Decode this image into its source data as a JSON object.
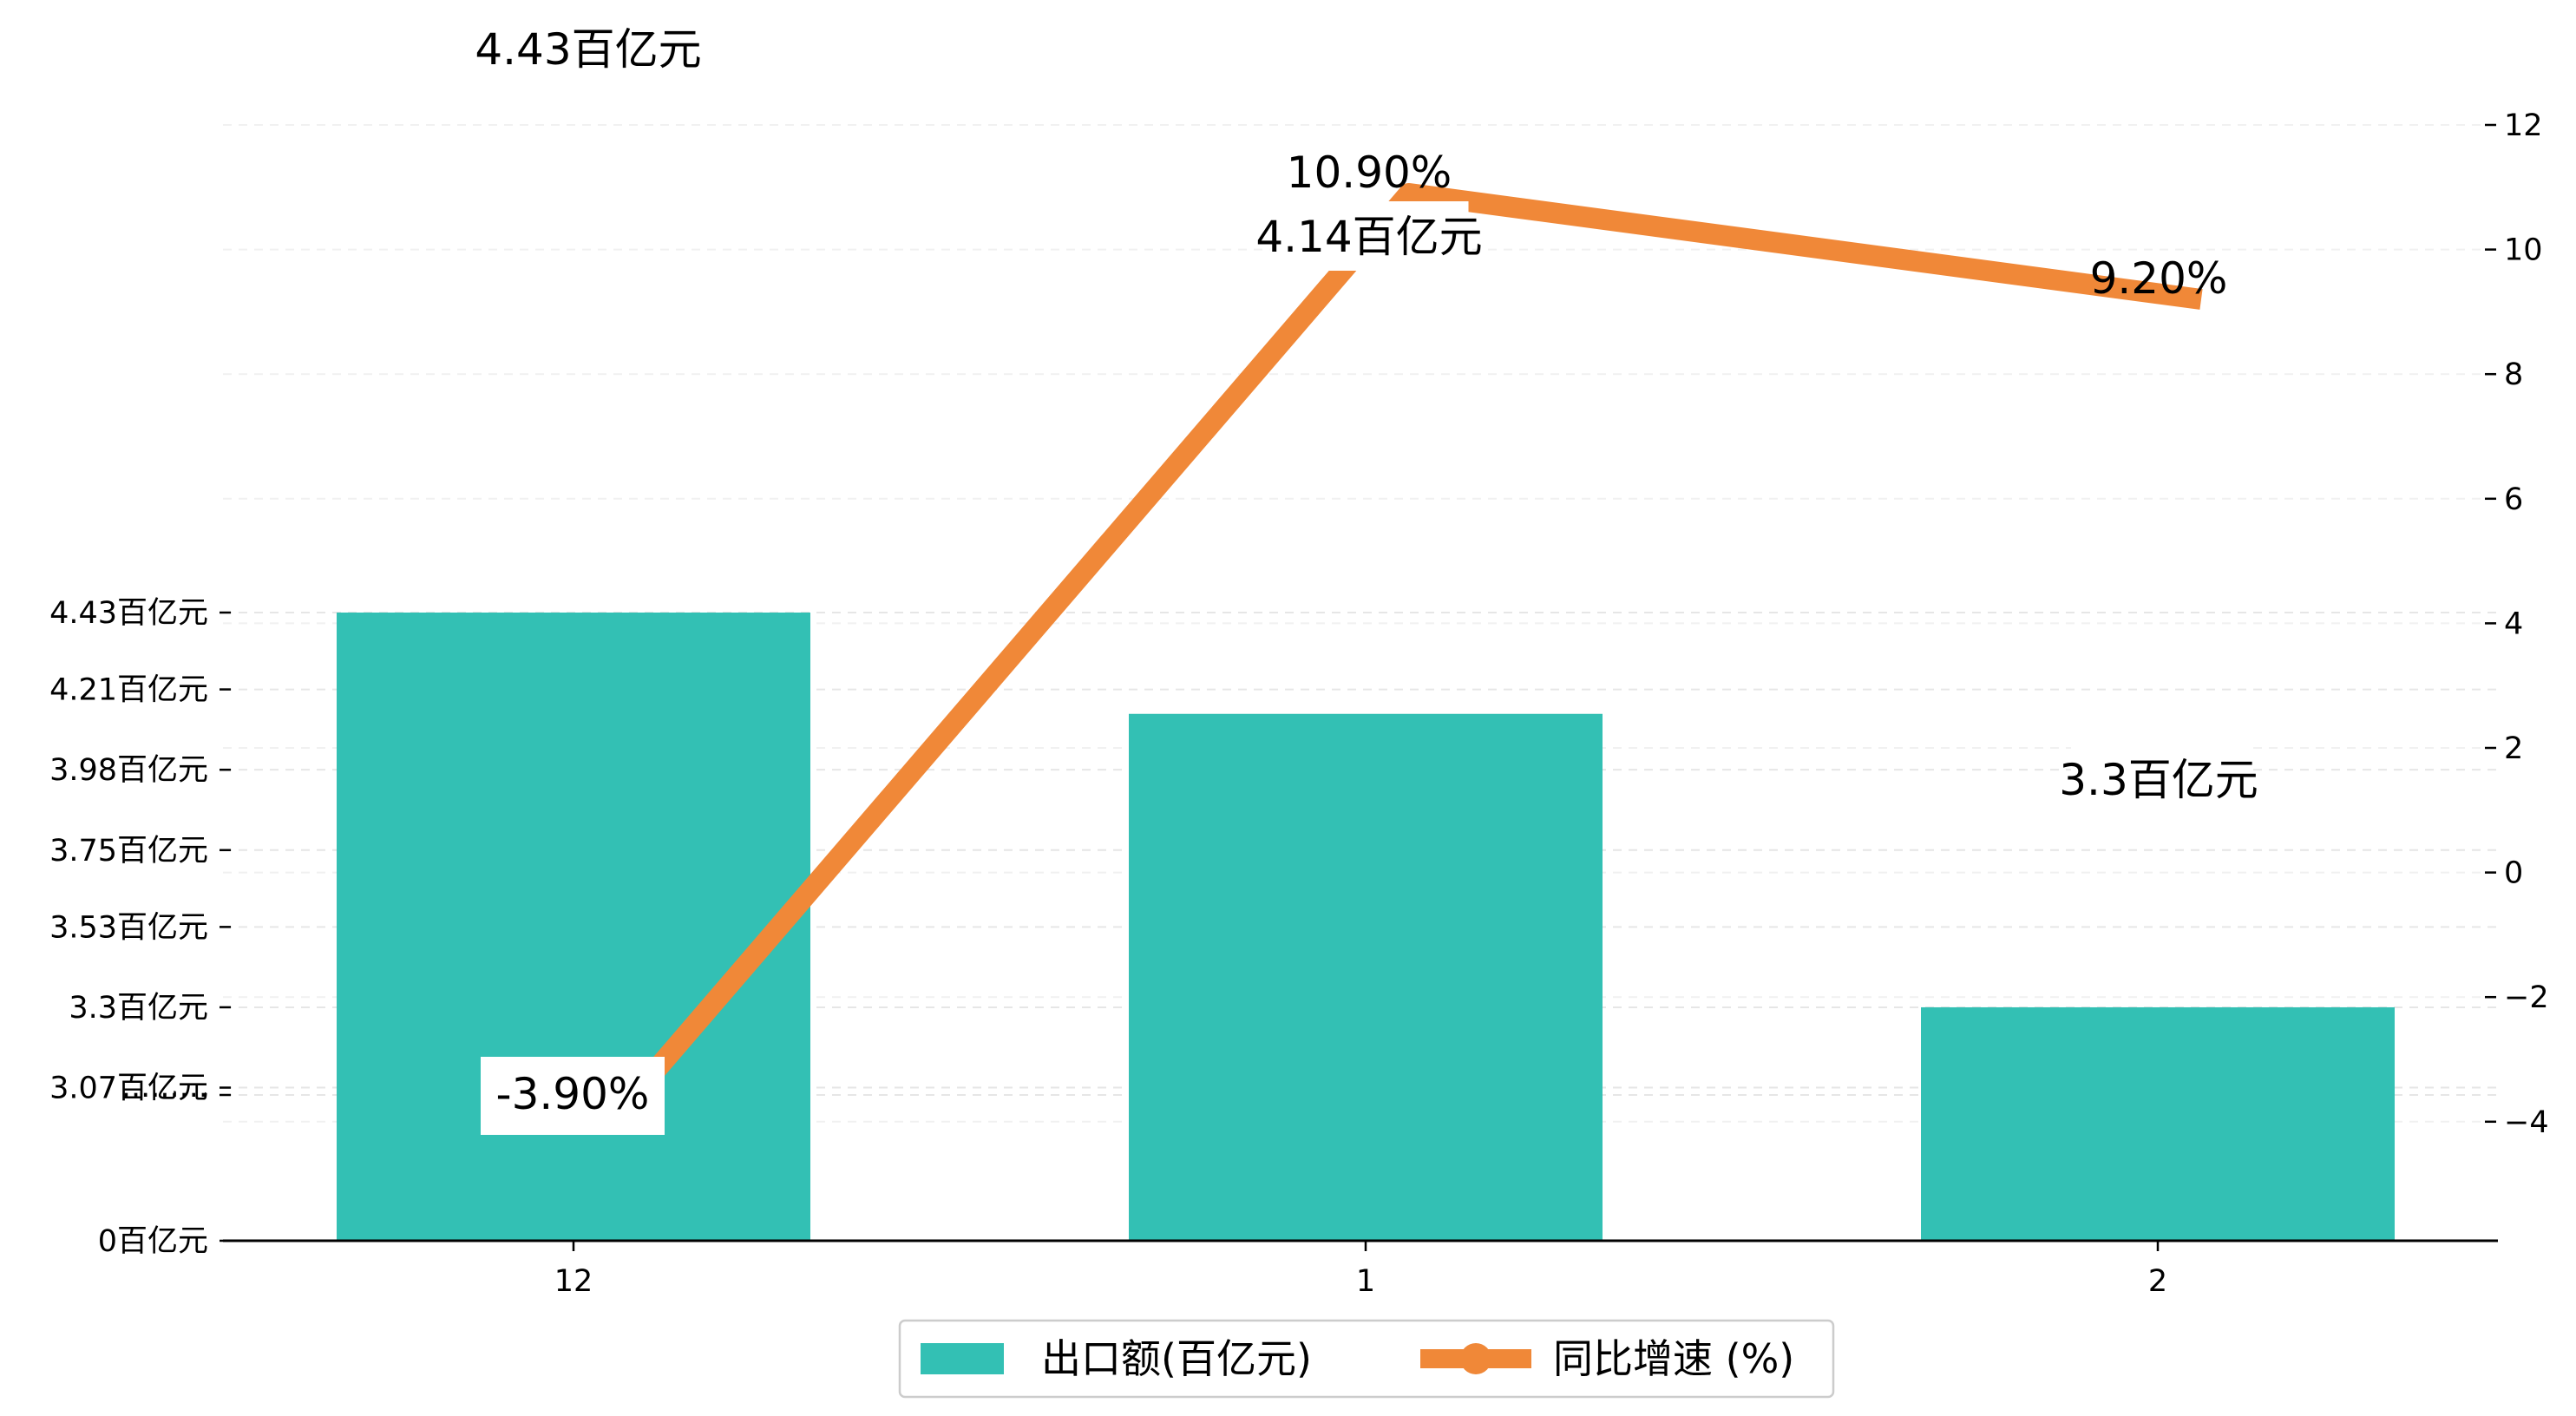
{
  "chart_data": {
    "type": "bar",
    "categories": [
      "12",
      "1",
      "2"
    ],
    "series": [
      {
        "name": "出口额(百亿元)",
        "kind": "bar",
        "axis": "left",
        "values": [
          4.43,
          4.14,
          3.3
        ],
        "labels": [
          "4.43百亿元",
          "4.14百亿元",
          "3.3百亿元"
        ],
        "color": "#33c0b4"
      },
      {
        "name": "同比增速 (%)",
        "kind": "line",
        "axis": "right",
        "values": [
          -3.9,
          10.9,
          9.2
        ],
        "labels": [
          "-3.90%",
          "10.90%",
          "9.20%"
        ],
        "color": "#f08838"
      }
    ],
    "left_axis": {
      "tick_labels": [
        "0百亿元",
        "·········",
        "3.07百亿元",
        "3.3百亿元",
        "3.53百亿元",
        "3.75百亿元",
        "3.98百亿元",
        "4.21百亿元",
        "4.43百亿元"
      ],
      "broken": true
    },
    "right_axis": {
      "ticks": [
        -4,
        -2,
        0,
        2,
        4,
        6,
        8,
        10,
        12
      ],
      "tick_labels": [
        "−4",
        "−2",
        "0",
        "2",
        "4",
        "6",
        "8",
        "10",
        "12"
      ],
      "range": [
        -5.86,
        14
      ]
    },
    "grid": "horizontal-dashed",
    "legend_placement": "bottom-center",
    "title": "",
    "xlabel": "",
    "ylabel": ""
  }
}
